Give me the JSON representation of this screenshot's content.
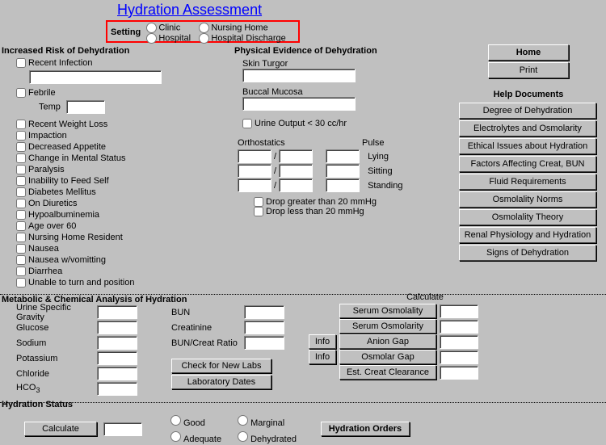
{
  "title": "Hydration Assessment",
  "setting": {
    "label": "Setting",
    "options": [
      "Clinic",
      "Nursing Home",
      "Hospital",
      "Hospital Discharge"
    ]
  },
  "sections": {
    "risk_header": "Increased Risk of Dehydration",
    "evidence_header": "Physical Evidence of Dehydration",
    "metabolic_header": "Metabolic & Chemical Analysis of Hydration",
    "status_header": "Hydration Status",
    "help_header": "Help Documents"
  },
  "risk": {
    "recent_infection": "Recent Infection",
    "febrile": "Febrile",
    "temp_label": "Temp",
    "items": [
      "Recent Weight Loss",
      "Impaction",
      "Decreased Appetite",
      "Change in Mental Status",
      "Paralysis",
      "Inability to Feed Self",
      "Diabetes Mellitus",
      "On Diuretics",
      "Hypoalbuminemia",
      "Age over 60",
      "Nursing Home Resident",
      "Nausea",
      "Nausea w/vomitting",
      "Diarrhea",
      "Unable to turn and position"
    ]
  },
  "evidence": {
    "skin_turgor": "Skin Turgor",
    "buccal_mucosa": "Buccal Mucosa",
    "urine_output": "Urine Output < 30 cc/hr",
    "orthostatics": "Orthostatics",
    "pulse": "Pulse",
    "lying": "Lying",
    "sitting": "Sitting",
    "standing": "Standing",
    "drop_gt": "Drop greater than 20 mmHg",
    "drop_lt": "Drop less than 20 mmHg"
  },
  "nav": {
    "home": "Home",
    "print": "Print"
  },
  "help": [
    "Degree of Dehydration",
    "Electrolytes and Osmolarity",
    "Ethical Issues about Hydration",
    "Factors Affecting Creat, BUN",
    "Fluid Requirements",
    "Osmolality Norms",
    "Osmolality Theory",
    "Renal Physiology and Hydration",
    "Signs of Dehydration"
  ],
  "metabolic": {
    "urine_sg": "Urine Specific Gravity",
    "glucose": "Glucose",
    "sodium": "Sodium",
    "potassium": "Potassium",
    "chloride": "Chloride",
    "hco3": "HCO",
    "hco3_sub": "3",
    "bun": "BUN",
    "creatinine": "Creatinine",
    "bun_creat": "BUN/Creat Ratio",
    "check_labs": "Check for New Labs",
    "lab_dates": "Laboratory Dates"
  },
  "calc": {
    "header": "Calculate",
    "info": "Info",
    "serum_osmolality": "Serum Osmolality",
    "serum_osmolarity": "Serum Osmolarity",
    "anion_gap": "Anion Gap",
    "osmolar_gap": "Osmolar Gap",
    "est_creat": "Est. Creat Clearance"
  },
  "status": {
    "calculate": "Calculate",
    "good": "Good",
    "adequate": "Adequate",
    "marginal": "Marginal",
    "dehydrated": "Dehydrated",
    "orders": "Hydration Orders"
  }
}
